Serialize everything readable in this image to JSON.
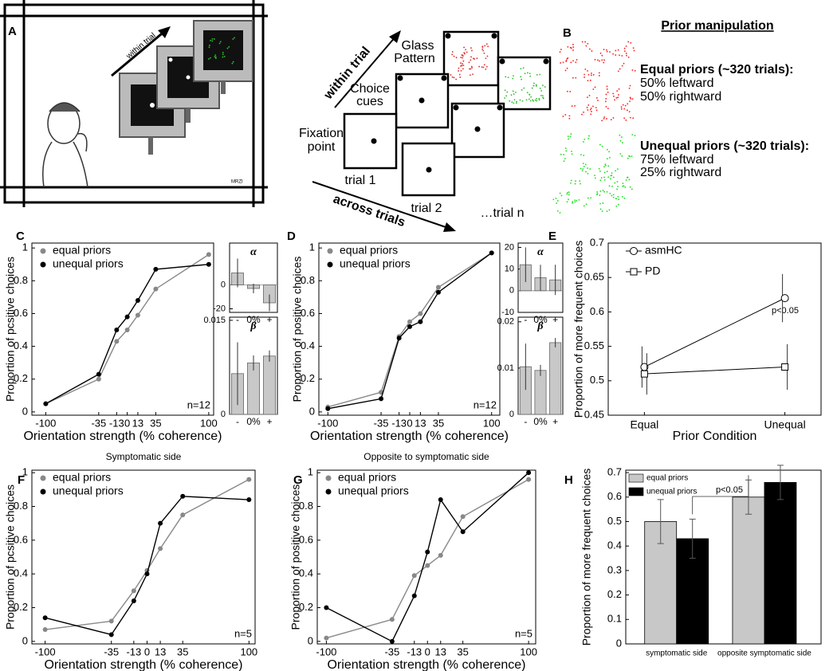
{
  "panel_a": {
    "label": "A",
    "cartoon_arrow": "within trial",
    "signature": "MRZI",
    "glass_pattern": [
      "Glass",
      "Pattern"
    ],
    "choice_cues": [
      "Choice",
      "cues"
    ],
    "fixation_point": [
      "Fixation",
      "point"
    ],
    "trial_1": "trial 1",
    "trial_2": "trial 2",
    "trial_n": "…trial n",
    "within_trial": "within trial",
    "across_trials": "across trials"
  },
  "panel_b": {
    "label": "B",
    "title": "Prior manipulation",
    "equal": {
      "heading": "Equal priors (~320 trials):",
      "lines": [
        "50% leftward",
        "50% rightward"
      ]
    },
    "unequal": {
      "heading": "Unequal priors (~320 trials):",
      "lines": [
        "75% leftward",
        "25% rightward"
      ]
    }
  },
  "chart_data": [
    {
      "type": "line",
      "panel_label": "C",
      "xlabel": "Orientation strength (% coherence)",
      "ylabel": "Proportion of pcsitive choices",
      "note": "n=12",
      "legend": "upper left",
      "x": [
        -100,
        -35,
        -13,
        0,
        13,
        35,
        100
      ],
      "xlim": [
        -117,
        106
      ],
      "xticks": [
        -100,
        -35,
        -13,
        0,
        13,
        35,
        100
      ],
      "ylim": [
        -0.02,
        1.03
      ],
      "yticks": [
        0,
        0.2,
        0.4,
        0.6,
        0.8,
        1
      ],
      "series": [
        {
          "name": "equal priors",
          "color": "#888888",
          "values": [
            0.05,
            0.2,
            0.43,
            0.5,
            0.59,
            0.75,
            0.96
          ]
        },
        {
          "name": "unequal priors",
          "color": "#000000",
          "values": [
            0.05,
            0.23,
            0.5,
            0.58,
            0.68,
            0.87,
            0.9
          ]
        }
      ]
    },
    {
      "type": "bar",
      "title": "α",
      "categories": [
        "-",
        "0%",
        "+"
      ],
      "values": [
        10,
        -3,
        -15
      ],
      "errors": [
        12,
        4,
        7
      ],
      "color": "#c8c8c8",
      "ylim": [
        -23,
        35
      ],
      "yticks": [
        -20,
        0
      ]
    },
    {
      "type": "bar",
      "title": "β",
      "categories": [
        "-",
        "0%",
        "+"
      ],
      "values": [
        0.0065,
        0.0082,
        0.0093
      ],
      "errors": [
        0.005,
        0.0012,
        0.0009
      ],
      "color": "#c8c8c8",
      "ylim": [
        0,
        0.0155
      ],
      "yticks": [
        0,
        0.015
      ]
    },
    {
      "type": "line",
      "panel_label": "D",
      "xlabel": "Orientation strength (% coherence)",
      "ylabel": "Proportion of positive choices",
      "note": "n=12",
      "legend": "upper left",
      "x": [
        -100,
        -35,
        -13,
        0,
        13,
        35,
        100
      ],
      "xlim": [
        -111,
        110
      ],
      "xticks": [
        -100,
        -35,
        -13,
        0,
        13,
        35,
        100
      ],
      "ylim": [
        -0.02,
        1.03
      ],
      "yticks": [
        0,
        0.2,
        0.4,
        0.6,
        0.8,
        1
      ],
      "series": [
        {
          "name": "equal priors",
          "color": "#888888",
          "values": [
            0.03,
            0.12,
            0.46,
            0.55,
            0.6,
            0.76,
            0.97
          ]
        },
        {
          "name": "unequal priors",
          "color": "#000000",
          "values": [
            0.02,
            0.08,
            0.45,
            0.52,
            0.55,
            0.73,
            0.97
          ]
        }
      ]
    },
    {
      "type": "bar",
      "title": "α",
      "categories": [
        "-",
        "0%",
        "+"
      ],
      "values": [
        12,
        6,
        5
      ],
      "errors": [
        8,
        6,
        7
      ],
      "color": "#c8c8c8",
      "ylim": [
        -10,
        22
      ],
      "yticks": [
        -10,
        0,
        10,
        20
      ]
    },
    {
      "type": "bar",
      "title": "β",
      "categories": [
        "-",
        "0%",
        "+"
      ],
      "values": [
        0.0103,
        0.0095,
        0.0155
      ],
      "errors": [
        0.005,
        0.0012,
        0.001
      ],
      "color": "#c8c8c8",
      "ylim": [
        0,
        0.021
      ],
      "yticks": [
        0,
        0.01,
        0.02
      ]
    },
    {
      "type": "category_line",
      "panel_label": "E",
      "xlabel": "Prior Condition",
      "ylabel": "Proportion of more frequent choices",
      "annotation": "p<0.05",
      "legend": "upper left",
      "categories": [
        "Equal",
        "Unequal"
      ],
      "ylim": [
        0.45,
        0.7
      ],
      "yticks": [
        0.45,
        0.5,
        0.55,
        0.6,
        0.65,
        0.7
      ],
      "series": [
        {
          "name": "asmHC",
          "marker": "circle",
          "color": "#000000",
          "values": [
            0.52,
            0.62
          ],
          "errors": [
            0.03,
            0.035
          ]
        },
        {
          "name": "PD",
          "marker": "square",
          "color": "#000000",
          "values": [
            0.51,
            0.52
          ],
          "errors": [
            0.03,
            0.033
          ]
        }
      ]
    },
    {
      "type": "line",
      "panel_label": "F",
      "title": "Symptomatic side",
      "xlabel": "Orientation strength (% coherence)",
      "ylabel": "Proportion of pcsitive choices",
      "note": "n=5",
      "legend": "upper left",
      "x": [
        -100,
        -35,
        -13,
        0,
        13,
        35,
        100
      ],
      "xlim": [
        -113,
        106
      ],
      "xticks": [
        -100,
        -35,
        -13,
        0,
        13,
        35,
        100
      ],
      "ylim": [
        -0.015,
        1.015
      ],
      "yticks": [
        0,
        0.2,
        0.4,
        0.6,
        0.8,
        1
      ],
      "series": [
        {
          "name": "equal priors",
          "color": "#888888",
          "values": [
            0.07,
            0.12,
            0.3,
            0.42,
            0.55,
            0.75,
            0.96
          ]
        },
        {
          "name": "unequal priors",
          "color": "#000000",
          "values": [
            0.14,
            0.04,
            0.24,
            0.4,
            0.7,
            0.86,
            0.84
          ]
        }
      ]
    },
    {
      "type": "line",
      "panel_label": "G",
      "title": "Opposite to symptomatic side",
      "xlabel": "Orientation strength (% coherence)",
      "ylabel": "Proportion of positive choices",
      "note": "n=5",
      "legend": "upper left",
      "x": [
        -100,
        -35,
        -13,
        0,
        13,
        35,
        100
      ],
      "xlim": [
        -109,
        107
      ],
      "xticks": [
        -100,
        -35,
        -13,
        0,
        13,
        35,
        100
      ],
      "ylim": [
        -0.015,
        1.015
      ],
      "yticks": [
        0,
        0.2,
        0.4,
        0.6,
        0.8,
        1
      ],
      "series": [
        {
          "name": "equal priors",
          "color": "#888888",
          "values": [
            0.02,
            0.13,
            0.39,
            0.45,
            0.51,
            0.74,
            0.96
          ]
        },
        {
          "name": "unequal priors",
          "color": "#000000",
          "values": [
            0.2,
            0.0,
            0.27,
            0.53,
            0.84,
            0.65,
            1.0
          ]
        }
      ]
    },
    {
      "type": "grouped_bar",
      "panel_label": "H",
      "ylabel": "Proportion of more frequent choices",
      "annotation": "p<0.05",
      "legend": "upper left",
      "categories": [
        "symptomatic side",
        "opposite symptomatic side"
      ],
      "ylim": [
        0,
        0.71
      ],
      "yticks": [
        0,
        0.1,
        0.2,
        0.3,
        0.4,
        0.5,
        0.6,
        0.7
      ],
      "series": [
        {
          "name": "equal priors",
          "color": "#c8c8c8",
          "values": [
            0.5,
            0.6
          ],
          "errors": [
            0.09,
            0.07
          ]
        },
        {
          "name": "unequal priors",
          "color": "#000000",
          "values": [
            0.43,
            0.66
          ],
          "errors": [
            0.08,
            0.07
          ]
        }
      ]
    }
  ]
}
